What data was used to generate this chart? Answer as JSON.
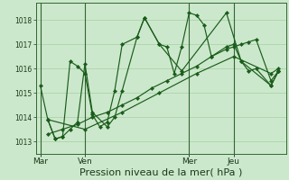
{
  "bg_color": "#cce8cc",
  "grid_color": "#aad4aa",
  "line_color": "#1a5c1a",
  "xlabel": "Pression niveau de la mer( hPa )",
  "xlabel_fontsize": 8,
  "ylim": [
    1012.5,
    1018.7
  ],
  "yticks": [
    1013,
    1014,
    1015,
    1016,
    1017,
    1018
  ],
  "xtick_labels": [
    "Mar",
    "Ven",
    "Mer",
    "Jeu"
  ],
  "xtick_positions": [
    0,
    3,
    10,
    13
  ],
  "vline_positions": [
    0,
    3,
    10,
    13
  ],
  "xlim": [
    -0.3,
    16.5
  ],
  "series": [
    {
      "x": [
        0,
        0.5,
        1.0,
        1.5,
        2.0,
        2.5,
        3.0,
        3.5,
        4.0,
        4.5,
        5.0,
        5.5,
        6.5,
        7.0,
        8.0,
        8.5,
        9.0,
        9.5,
        10.0,
        10.5,
        11.0,
        11.5,
        12.5,
        13.0,
        13.5,
        14.0,
        14.5,
        15.5,
        16.0
      ],
      "y": [
        1015.3,
        1013.9,
        1013.1,
        1013.2,
        1016.3,
        1016.1,
        1015.8,
        1014.1,
        1013.6,
        1013.8,
        1015.1,
        1017.0,
        1017.3,
        1018.1,
        1017.0,
        1016.9,
        1015.8,
        1016.9,
        1018.3,
        1018.2,
        1017.8,
        1016.5,
        1016.9,
        1017.0,
        1016.3,
        1015.9,
        1016.0,
        1015.3,
        1015.9
      ]
    },
    {
      "x": [
        0.5,
        1.0,
        1.5,
        2.0,
        2.5,
        3.0,
        3.5,
        4.5,
        5.0,
        5.5,
        6.5,
        7.0,
        8.0,
        9.5,
        12.5,
        13.5,
        15.5,
        16.0
      ],
      "y": [
        1013.9,
        1013.1,
        1013.2,
        1013.5,
        1013.8,
        1016.2,
        1014.2,
        1013.6,
        1014.0,
        1015.1,
        1017.3,
        1018.1,
        1017.0,
        1015.9,
        1018.3,
        1016.3,
        1015.3,
        1015.9
      ]
    },
    {
      "x": [
        0.5,
        1.5,
        2.5,
        3.5,
        4.5,
        5.5,
        6.5,
        7.5,
        8.5,
        9.5,
        10.5,
        11.5,
        12.5,
        13.0,
        13.5,
        14.0,
        14.5,
        15.5,
        16.0
      ],
      "y": [
        1013.3,
        1013.5,
        1013.7,
        1014.0,
        1014.2,
        1014.5,
        1014.8,
        1015.2,
        1015.5,
        1015.8,
        1016.1,
        1016.5,
        1016.8,
        1016.9,
        1017.0,
        1017.1,
        1017.2,
        1015.5,
        1015.9
      ]
    },
    {
      "x": [
        0.5,
        3.0,
        5.5,
        8.0,
        10.5,
        13.0,
        15.5,
        16.0
      ],
      "y": [
        1013.9,
        1013.5,
        1014.2,
        1015.0,
        1015.8,
        1016.5,
        1015.8,
        1016.0
      ]
    }
  ]
}
